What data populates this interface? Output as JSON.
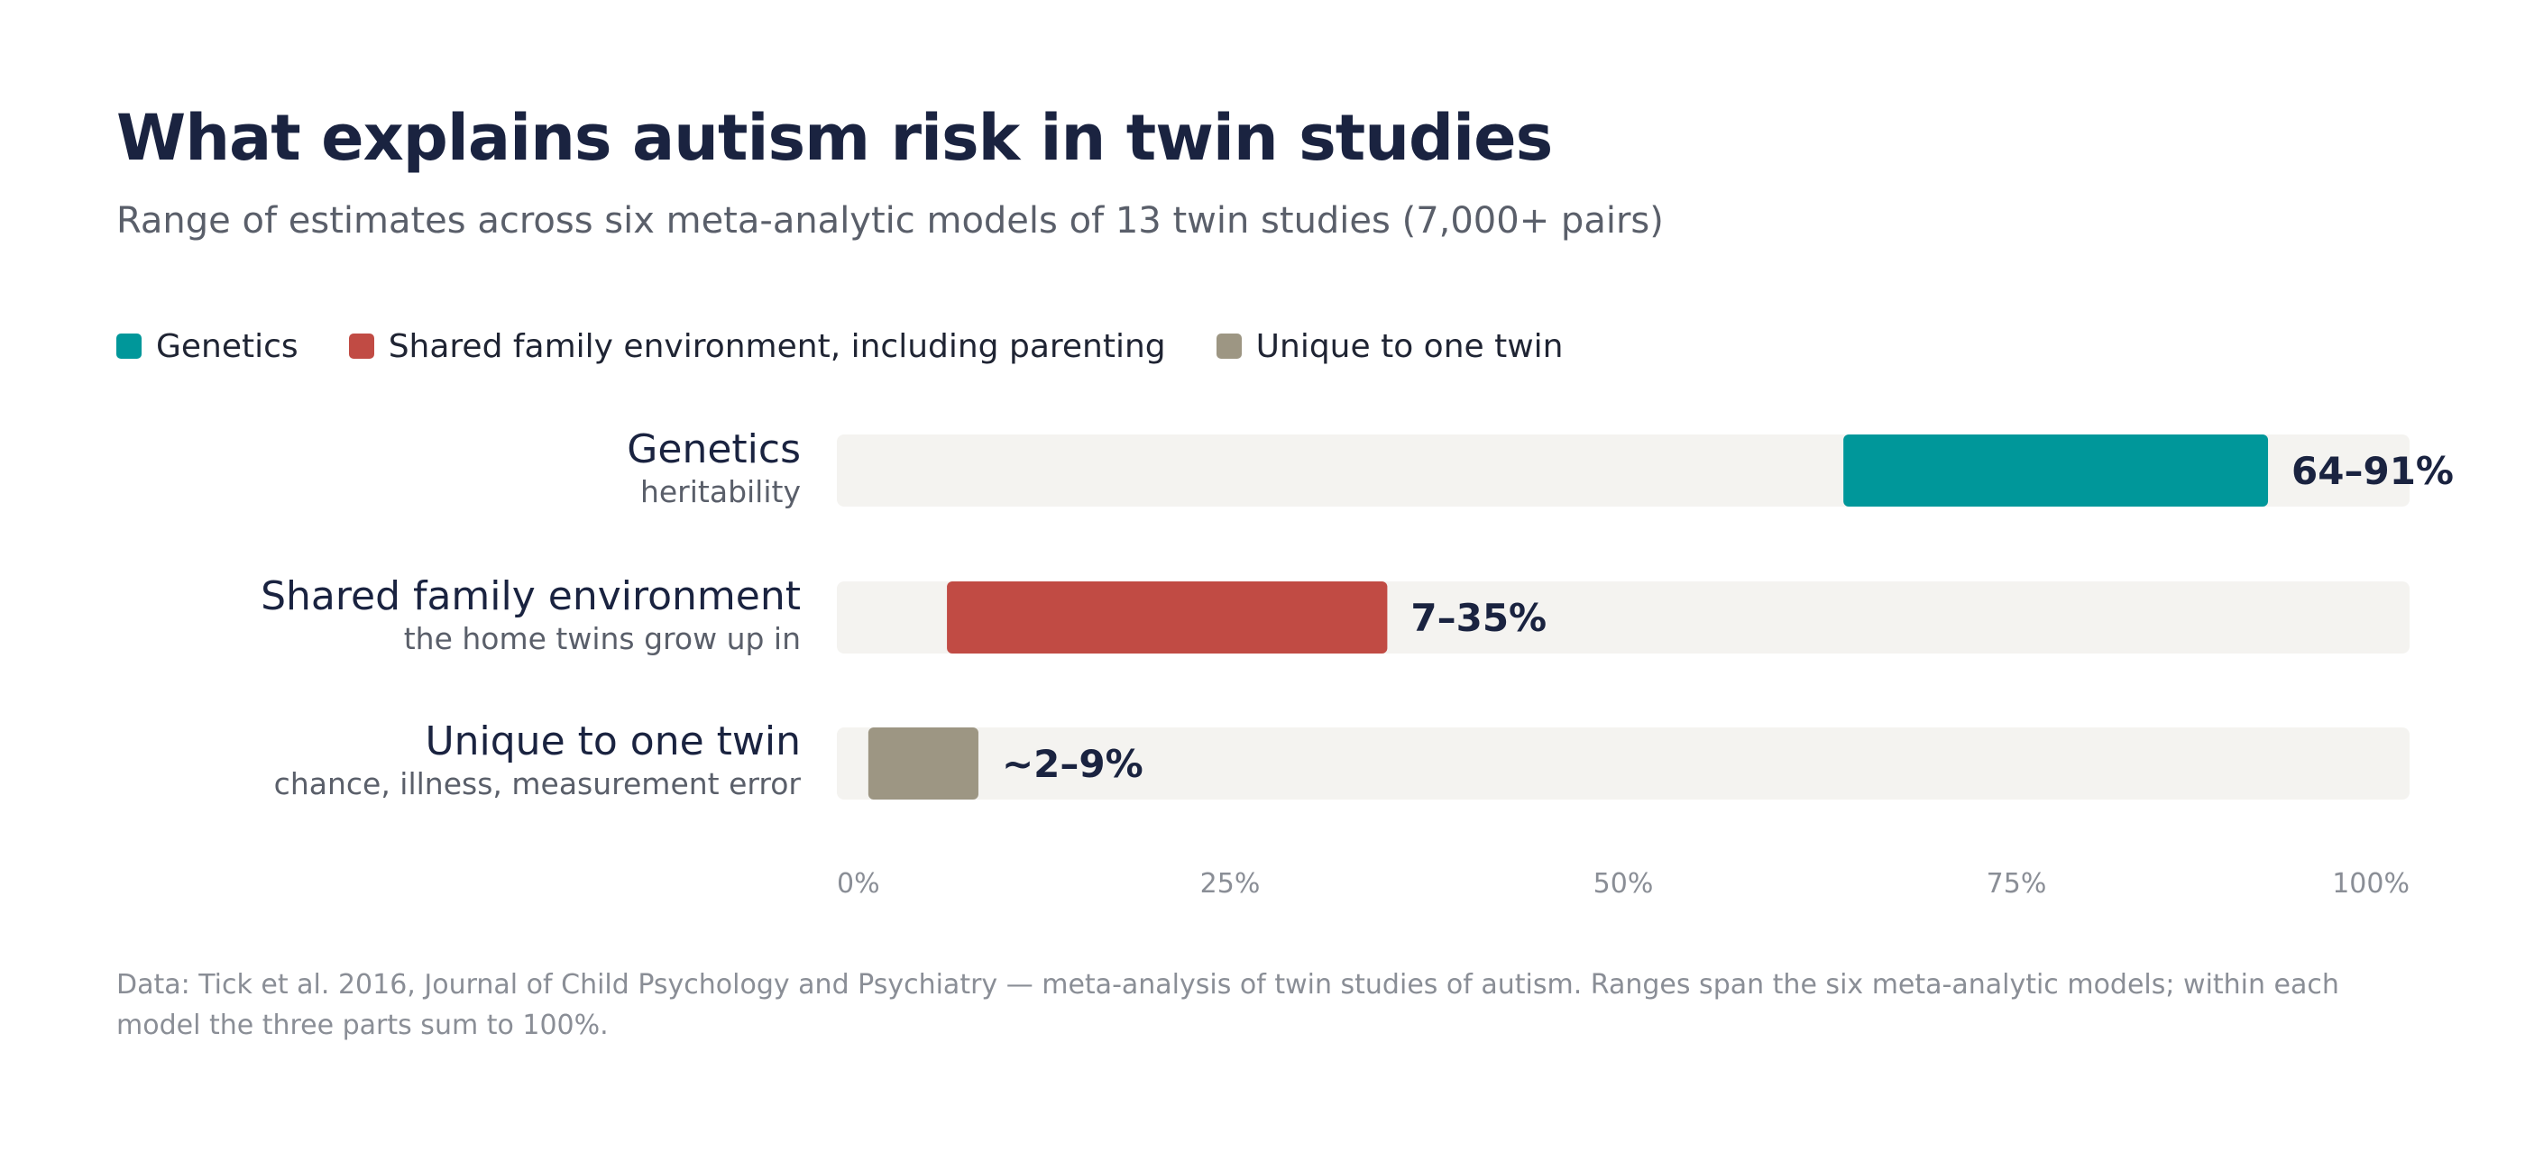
{
  "chart_data": {
    "type": "bar",
    "title": "What explains autism risk in twin studies",
    "subtitle": "Range of estimates across six meta-analytic models of 13 twin studies (7,000+ pairs)",
    "legend": [
      {
        "label": "Genetics",
        "color": "#00979a"
      },
      {
        "label": "Shared family environment, including parenting",
        "color": "#c14b44"
      },
      {
        "label": "Unique to one twin",
        "color": "#9d9683"
      }
    ],
    "legend_position": "top-left",
    "orientation": "horizontal",
    "xlim": [
      0,
      100
    ],
    "x_ticks": [
      "0%",
      "25%",
      "50%",
      "75%",
      "100%"
    ],
    "grid": false,
    "rows": [
      {
        "name": "Genetics",
        "sub": "heritability",
        "low": 64,
        "high": 91,
        "label": "64–91%",
        "color": "#00979a"
      },
      {
        "name": "Shared family environment",
        "sub": "the home twins grow up in",
        "low": 7,
        "high": 35,
        "label": "7–35%",
        "color": "#c14b44"
      },
      {
        "name": "Unique to one twin",
        "sub": "chance, illness, measurement error",
        "low": 2,
        "high": 9,
        "label": "~2–9%",
        "color": "#9d9683"
      }
    ],
    "track_color": "#f4f3f0",
    "footnote": "Data: Tick et al. 2016, Journal of Child Psychology and Psychiatry — meta-analysis of twin studies of autism. Ranges span the six meta-analytic models; within each model the three parts sum to 100%."
  }
}
